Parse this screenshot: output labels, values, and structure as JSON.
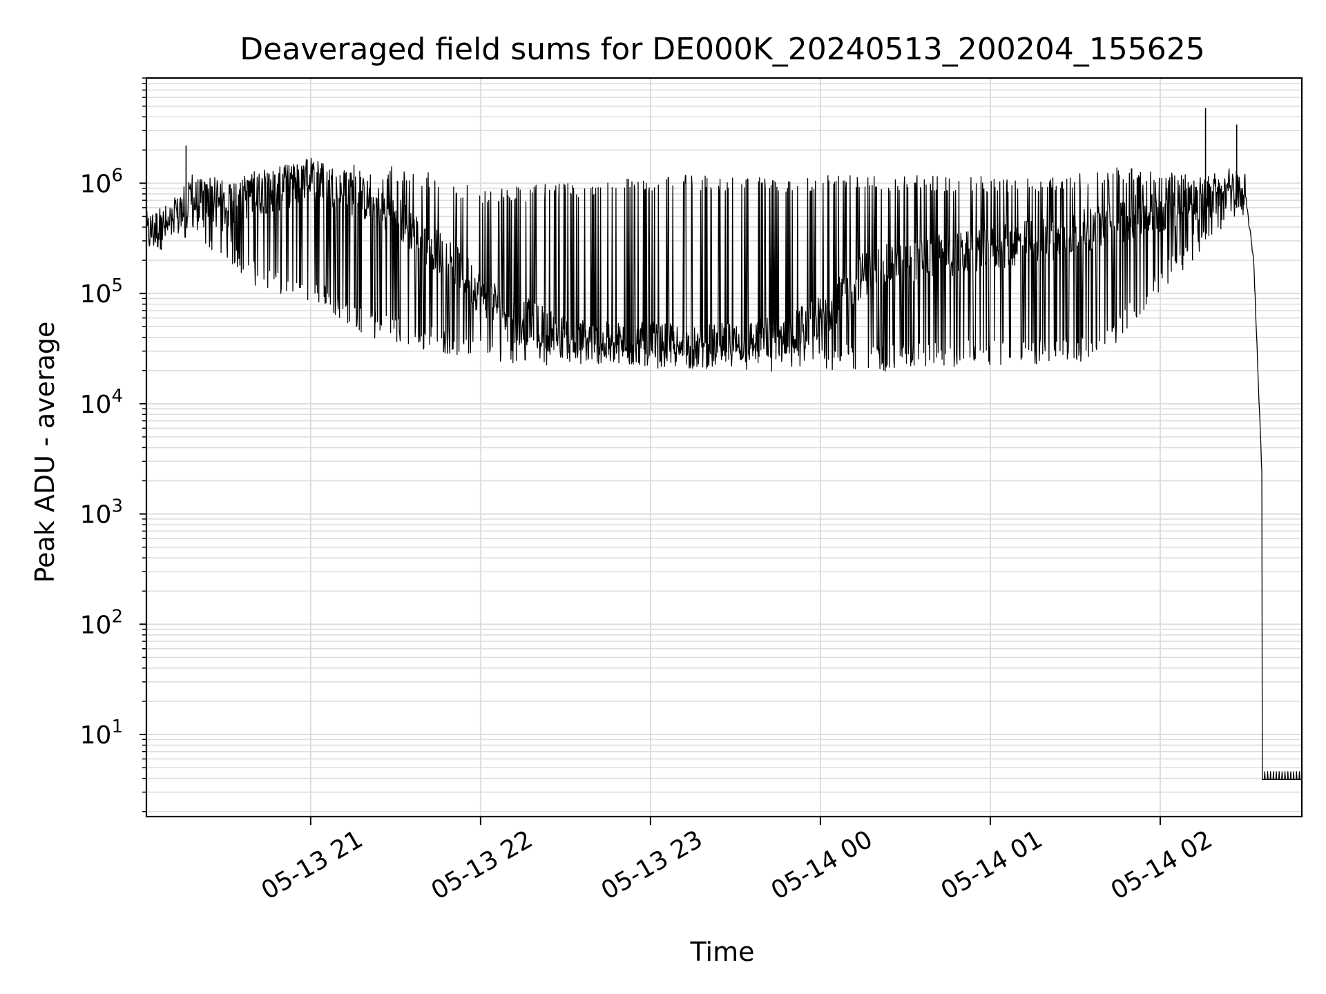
{
  "chart_data": {
    "type": "line",
    "title": "Deaveraged field sums for DE000K_20240513_200204_155625",
    "xlabel": "Time",
    "ylabel": "Peak ADU - average",
    "yscale": "log",
    "xlim": [
      "2024-05-13 20:02",
      "2024-05-14 02:50"
    ],
    "ylim": [
      1.8,
      9000000
    ],
    "grid": true,
    "x_ticks": [
      "05-13 21",
      "05-13 22",
      "05-13 23",
      "05-14 00",
      "05-14 01",
      "05-14 02"
    ],
    "y_ticks": [
      {
        "base": "10",
        "exp": "1",
        "value": 10
      },
      {
        "base": "10",
        "exp": "2",
        "value": 100
      },
      {
        "base": "10",
        "exp": "3",
        "value": 1000
      },
      {
        "base": "10",
        "exp": "4",
        "value": 10000
      },
      {
        "base": "10",
        "exp": "5",
        "value": 100000
      },
      {
        "base": "10",
        "exp": "6",
        "value": 1000000
      }
    ],
    "series": [
      {
        "color": "#000000",
        "x": [
          "2024-05-13 20:02",
          "2024-05-13 20:10",
          "2024-05-13 20:20",
          "2024-05-13 20:30",
          "2024-05-13 20:40",
          "2024-05-13 20:50",
          "2024-05-13 21:00",
          "2024-05-13 21:10",
          "2024-05-13 21:20",
          "2024-05-13 21:30",
          "2024-05-13 21:40",
          "2024-05-13 21:50",
          "2024-05-13 22:00",
          "2024-05-13 22:15",
          "2024-05-13 22:30",
          "2024-05-13 22:45",
          "2024-05-13 23:00",
          "2024-05-13 23:15",
          "2024-05-13 23:30",
          "2024-05-13 23:45",
          "2024-05-14 00:00",
          "2024-05-14 00:15",
          "2024-05-14 00:30",
          "2024-05-14 00:45",
          "2024-05-14 01:00",
          "2024-05-14 01:15",
          "2024-05-14 01:30",
          "2024-05-14 01:45",
          "2024-05-14 02:00",
          "2024-05-14 02:15",
          "2024-05-14 02:25",
          "2024-05-14 02:30",
          "2024-05-14 02:33",
          "2024-05-14 02:36",
          "2024-05-14 02:38",
          "2024-05-14 02:40",
          "2024-05-14 02:50"
        ],
        "y": [
          350000,
          420000,
          700000,
          600000,
          800000,
          900000,
          1100000,
          900000,
          700000,
          500000,
          300000,
          200000,
          100000,
          60000,
          40000,
          35000,
          35000,
          32000,
          35000,
          40000,
          60000,
          150000,
          200000,
          220000,
          250000,
          300000,
          350000,
          450000,
          550000,
          750000,
          900000,
          800000,
          200000,
          2000,
          4,
          4,
          4
        ],
        "upper": [
          500000,
          550000,
          1500000,
          1000000,
          1300000,
          1500000,
          1700000,
          1600000,
          1500000,
          1400000,
          1300000,
          1100000,
          900000,
          950000,
          1000000,
          1100000,
          1150000,
          1200000,
          1200000,
          1150000,
          1200000,
          1200000,
          1200000,
          1150000,
          1150000,
          1150000,
          1200000,
          1400000,
          1300000,
          1150000,
          1100000,
          900000,
          200000,
          2000,
          4.5,
          4.5,
          4.5
        ],
        "lower": [
          250000,
          300000,
          300000,
          200000,
          120000,
          90000,
          80000,
          60000,
          40000,
          35000,
          30000,
          28000,
          25000,
          23000,
          22000,
          22000,
          21000,
          21000,
          20000,
          18000,
          20000,
          19000,
          20000,
          21000,
          22000,
          22000,
          23000,
          35000,
          100000,
          250000,
          450000,
          600000,
          200000,
          2000,
          4,
          4,
          4
        ],
        "spikes": [
          {
            "x": "2024-05-13 20:16",
            "y": 2200000
          },
          {
            "x": "2024-05-14 02:16",
            "y": 4800000
          },
          {
            "x": "2024-05-14 02:27",
            "y": 3400000
          }
        ]
      }
    ]
  }
}
